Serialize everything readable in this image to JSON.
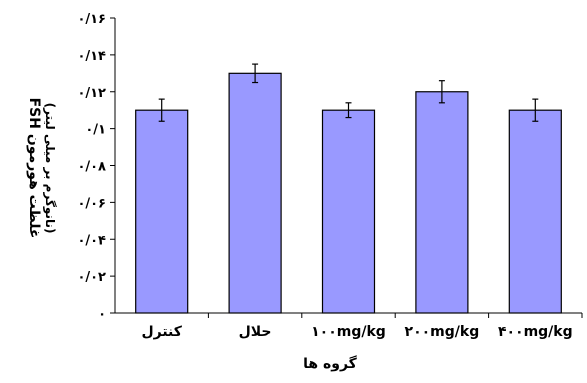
{
  "chart_data": {
    "type": "bar",
    "categories": [
      "کنترل",
      "حلال",
      "۱۰۰mg/kg",
      "۲۰۰mg/kg",
      "۴۰۰mg/kg"
    ],
    "values": [
      0.11,
      0.13,
      0.11,
      0.12,
      0.11
    ],
    "error": [
      0.006,
      0.005,
      0.004,
      0.006,
      0.006
    ],
    "ylim": [
      0,
      0.16
    ],
    "yticks": [
      {
        "value": 0,
        "label": "۰"
      },
      {
        "value": 0.02,
        "label": "۰/۰۲"
      },
      {
        "value": 0.04,
        "label": "۰/۰۴"
      },
      {
        "value": 0.06,
        "label": "۰/۰۶"
      },
      {
        "value": 0.08,
        "label": "۰/۰۸"
      },
      {
        "value": 0.1,
        "label": "۰/۱"
      },
      {
        "value": 0.12,
        "label": "۰/۱۲"
      },
      {
        "value": 0.14,
        "label": "۰/۱۴"
      },
      {
        "value": 0.16,
        "label": "۰/۱۶"
      }
    ],
    "xlabel": "گروه ها",
    "ylabel": "غلظت هورمون FSH",
    "ylabel_sub": "(نانوگرم بر میلی لیتر)",
    "grid": false,
    "legend": "none",
    "bar_color": "#9999ff",
    "bar_stroke": "#000000"
  }
}
